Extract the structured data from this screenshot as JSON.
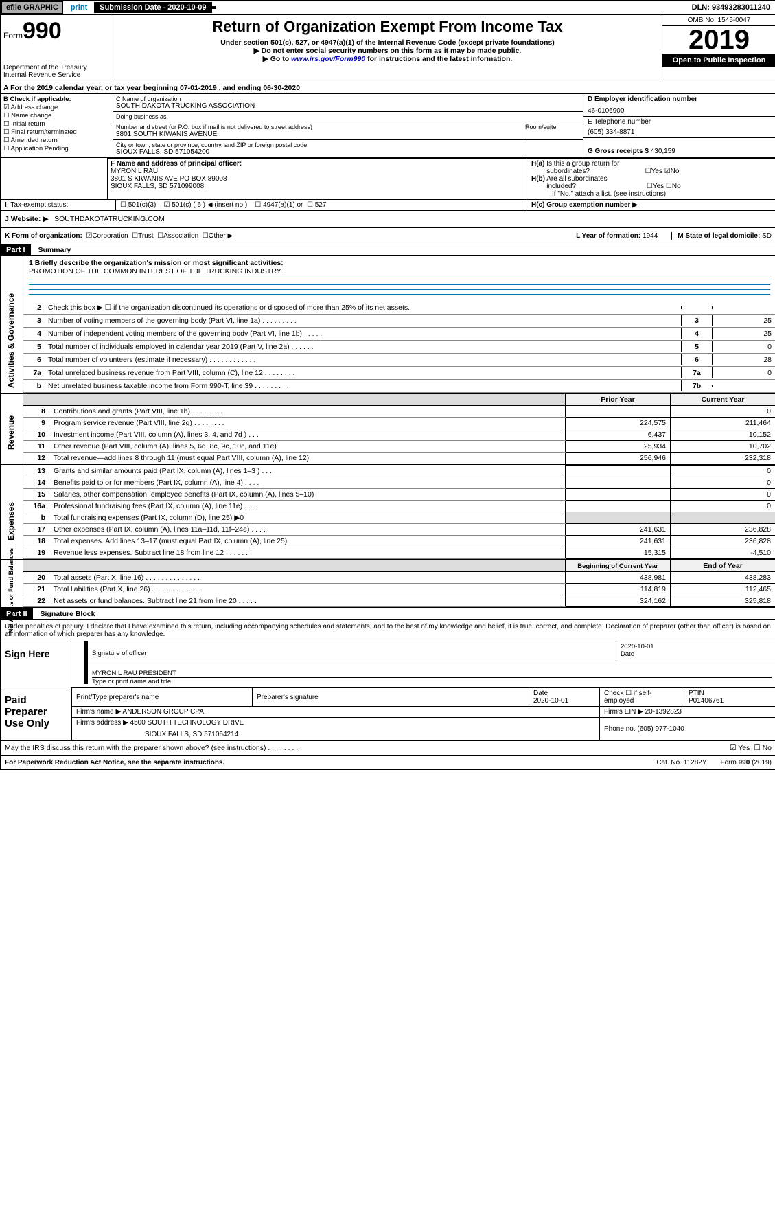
{
  "top_bar": {
    "efile": "efile GRAPHIC",
    "print": "print",
    "submission_label": "Submission Date - 2020-10-09",
    "dln": "DLN: 93493283011240"
  },
  "header": {
    "form_prefix": "Form",
    "form_number": "990",
    "dept": "Department of the Treasury",
    "irs": "Internal Revenue Service",
    "title": "Return of Organization Exempt From Income Tax",
    "subtitle1": "Under section 501(c), 527, or 4947(a)(1) of the Internal Revenue Code (except private foundations)",
    "subtitle2": "▶ Do not enter social security numbers on this form as it may be made public.",
    "subtitle3": "▶ Go to www.irs.gov/Form990 for instructions and the latest information.",
    "omb": "OMB No. 1545-0047",
    "year": "2019",
    "open_public": "Open to Public Inspection"
  },
  "tax_year_line": "A For the 2019 calendar year, or tax year beginning 07-01-2019    , and ending 06-30-2020",
  "box_b": {
    "label": "B Check if applicable:",
    "items": [
      "Address change",
      "Name change",
      "Initial return",
      "Final return/terminated",
      "Amended return",
      "Application Pending"
    ],
    "checked_idx": 0
  },
  "box_c": {
    "name_label": "C Name of organization",
    "name_value": "SOUTH DAKOTA TRUCKING ASSOCIATION",
    "dba_label": "Doing business as",
    "dba_value": "",
    "street_label": "Number and street (or P.O. box if mail is not delivered to street address)",
    "room_label": "Room/suite",
    "street_value": "3801 SOUTH KIWANIS AVENUE",
    "city_label": "City or town, state or province, country, and ZIP or foreign postal code",
    "city_value": "SIOUX FALLS, SD  571054200"
  },
  "box_d": {
    "label": "D Employer identification number",
    "value": "46-0106900",
    "e_label": "E Telephone number",
    "e_value": "(605) 334-8871",
    "g_label": "G Gross receipts $",
    "g_value": "430,159"
  },
  "box_f": {
    "label": "F Name and address of principal officer:",
    "name": "MYRON L RAU",
    "addr1": "3801 S KIWANIS AVE PO BOX 89008",
    "addr2": "SIOUX FALLS, SD  571099008"
  },
  "box_h": {
    "a_label": "H(a)  Is this a group return for subordinates?",
    "a_yes": "Yes",
    "a_no": "No",
    "b_label": "H(b)  Are all subordinates included?",
    "b_hint": "If \"No,\" attach a list. (see instructions)",
    "c_label": "H(c)  Group exemption number ▶"
  },
  "tax_exempt": {
    "label": "Tax-exempt status:",
    "opts": [
      "501(c)(3)",
      "501(c) ( 6 ) ◀ (insert no.)",
      "4947(a)(1) or",
      "527"
    ],
    "checked_idx": 1
  },
  "website": {
    "label": "J   Website: ▶",
    "value": "SOUTHDAKOTATRUCKING.COM"
  },
  "k_row": {
    "label": "K Form of organization:",
    "opts": [
      "Corporation",
      "Trust",
      "Association",
      "Other ▶"
    ],
    "checked_idx": 0,
    "l_label": "L Year of formation:",
    "l_value": "1944",
    "m_label": "M State of legal domicile:",
    "m_value": "SD"
  },
  "part1": {
    "header": "Part I",
    "title": "Summary"
  },
  "side_labels": {
    "gov": "Activities & Governance",
    "rev": "Revenue",
    "exp": "Expenses",
    "net": "Net Assets or Fund Balances"
  },
  "mission": {
    "label": "1  Briefly describe the organization's mission or most significant activities:",
    "text": "PROMOTION OF THE COMMON INTEREST OF THE TRUCKING INDUSTRY."
  },
  "governance_lines": [
    {
      "num": "2",
      "desc": "Check this box ▶ ☐  if the organization discontinued its operations or disposed of more than 25% of its net assets.",
      "lbl": "",
      "val": ""
    },
    {
      "num": "3",
      "desc": "Number of voting members of the governing body (Part VI, line 1a)   .    .    .    .    .    .    .    .    .",
      "lbl": "3",
      "val": "25"
    },
    {
      "num": "4",
      "desc": "Number of independent voting members of the governing body (Part VI, line 1b)   .    .    .    .    .",
      "lbl": "4",
      "val": "25"
    },
    {
      "num": "5",
      "desc": "Total number of individuals employed in calendar year 2019 (Part V, line 2a)   .    .    .    .    .    .",
      "lbl": "5",
      "val": "0"
    },
    {
      "num": "6",
      "desc": "Total number of volunteers (estimate if necessary)   .    .    .    .    .    .    .    .    .    .    .    .",
      "lbl": "6",
      "val": "28"
    },
    {
      "num": "7a",
      "desc": "Total unrelated business revenue from Part VIII, column (C), line 12  .    .    .    .    .    .    .    .",
      "lbl": "7a",
      "val": "0"
    },
    {
      "num": "b ",
      "desc": "Net unrelated business taxable income from Form 990-T, line 39   .    .    .    .    .    .    .    .    .",
      "lbl": "7b",
      "val": ""
    }
  ],
  "rev_header": {
    "py": "Prior Year",
    "cy": "Current Year"
  },
  "revenue_lines": [
    {
      "num": "8",
      "desc": "Contributions and grants (Part VIII, line 1h)   .    .    .    .    .    .    .    .",
      "py": "",
      "cy": "0"
    },
    {
      "num": "9",
      "desc": "Program service revenue (Part VIII, line 2g)   .    .    .    .    .    .    .    .",
      "py": "224,575",
      "cy": "211,464"
    },
    {
      "num": "10",
      "desc": "Investment income (Part VIII, column (A), lines 3, 4, and 7d )   .    .    .",
      "py": "6,437",
      "cy": "10,152"
    },
    {
      "num": "11",
      "desc": "Other revenue (Part VIII, column (A), lines 5, 6d, 8c, 9c, 10c, and 11e)",
      "py": "25,934",
      "cy": "10,702"
    },
    {
      "num": "12",
      "desc": "Total revenue—add lines 8 through 11 (must equal Part VIII, column (A), line 12)",
      "py": "256,946",
      "cy": "232,318"
    }
  ],
  "expense_lines": [
    {
      "num": "13",
      "desc": "Grants and similar amounts paid (Part IX, column (A), lines 1–3 )   .    .    .",
      "py": "",
      "cy": "0"
    },
    {
      "num": "14",
      "desc": "Benefits paid to or for members (Part IX, column (A), line 4)   .    .    .    .",
      "py": "",
      "cy": "0"
    },
    {
      "num": "15",
      "desc": "Salaries, other compensation, employee benefits (Part IX, column (A), lines 5–10)",
      "py": "",
      "cy": "0"
    },
    {
      "num": "16a",
      "desc": "Professional fundraising fees (Part IX, column (A), line 11e)   .    .    .    .",
      "py": "",
      "cy": "0"
    },
    {
      "num": "b",
      "desc": "Total fundraising expenses (Part IX, column (D), line 25) ▶0",
      "py": "hlite",
      "cy": "hlite"
    },
    {
      "num": "17",
      "desc": "Other expenses (Part IX, column (A), lines 11a–11d, 11f–24e)   .    .    .    .",
      "py": "241,631",
      "cy": "236,828"
    },
    {
      "num": "18",
      "desc": "Total expenses. Add lines 13–17 (must equal Part IX, column (A), line 25)",
      "py": "241,631",
      "cy": "236,828"
    },
    {
      "num": "19",
      "desc": "Revenue less expenses. Subtract line 18 from line 12  .    .    .    .    .    .    .",
      "py": "15,315",
      "cy": "-4,510"
    }
  ],
  "net_header": {
    "py": "Beginning of Current Year",
    "cy": "End of Year"
  },
  "net_lines": [
    {
      "num": "20",
      "desc": "Total assets (Part X, line 16)   .    .    .    .    .    .    .    .    .    .    .    .    .    .",
      "py": "438,981",
      "cy": "438,283"
    },
    {
      "num": "21",
      "desc": "Total liabilities (Part X, line 26)  .    .    .    .    .    .    .    .    .    .    .    .    .",
      "py": "114,819",
      "cy": "112,465"
    },
    {
      "num": "22",
      "desc": "Net assets or fund balances. Subtract line 21 from line 20   .    .    .    .    .",
      "py": "324,162",
      "cy": "325,818"
    }
  ],
  "part2": {
    "header": "Part II",
    "title": "Signature Block",
    "declaration": "Under penalties of perjury, I declare that I have examined this return, including accompanying schedules and statements, and to the best of my knowledge and belief, it is true, correct, and complete. Declaration of preparer (other than officer) is based on all information of which preparer has any knowledge."
  },
  "sign_here": {
    "label": "Sign Here",
    "sig_officer": "Signature of officer",
    "date": "2020-10-01",
    "date_label": "Date",
    "officer_name": "MYRON L RAU PRESIDENT",
    "type_label": "Type or print name and title"
  },
  "paid_prep": {
    "label": "Paid Preparer Use Only",
    "col1": "Print/Type preparer's name",
    "col2": "Preparer's signature",
    "col3": "Date",
    "col3_val": "2020-10-01",
    "col4": "Check ☐ if self-employed",
    "col5": "PTIN",
    "col5_val": "P01406761",
    "firm_name_label": "Firm's name      ▶",
    "firm_name": "ANDERSON GROUP CPA",
    "firm_ein_label": "Firm's EIN ▶",
    "firm_ein": "20-1392823",
    "firm_addr_label": "Firm's address ▶",
    "firm_addr1": "4500 SOUTH TECHNOLOGY DRIVE",
    "firm_addr2": "SIOUX FALLS, SD  571064214",
    "phone_label": "Phone no.",
    "phone": "(605) 977-1040"
  },
  "discuss": {
    "text": "May the IRS discuss this return with the preparer shown above? (see instructions)   .    .    .    .    .    .    .    .    .",
    "yes": "Yes",
    "no": "No"
  },
  "footer": {
    "pra": "For Paperwork Reduction Act Notice, see the separate instructions.",
    "cat": "Cat. No. 11282Y",
    "form": "Form 990 (2019)"
  },
  "colors": {
    "link": "#0000cc",
    "hr": "#007ab8",
    "gray_bg": "#dcdcdc",
    "black": "#000000"
  }
}
